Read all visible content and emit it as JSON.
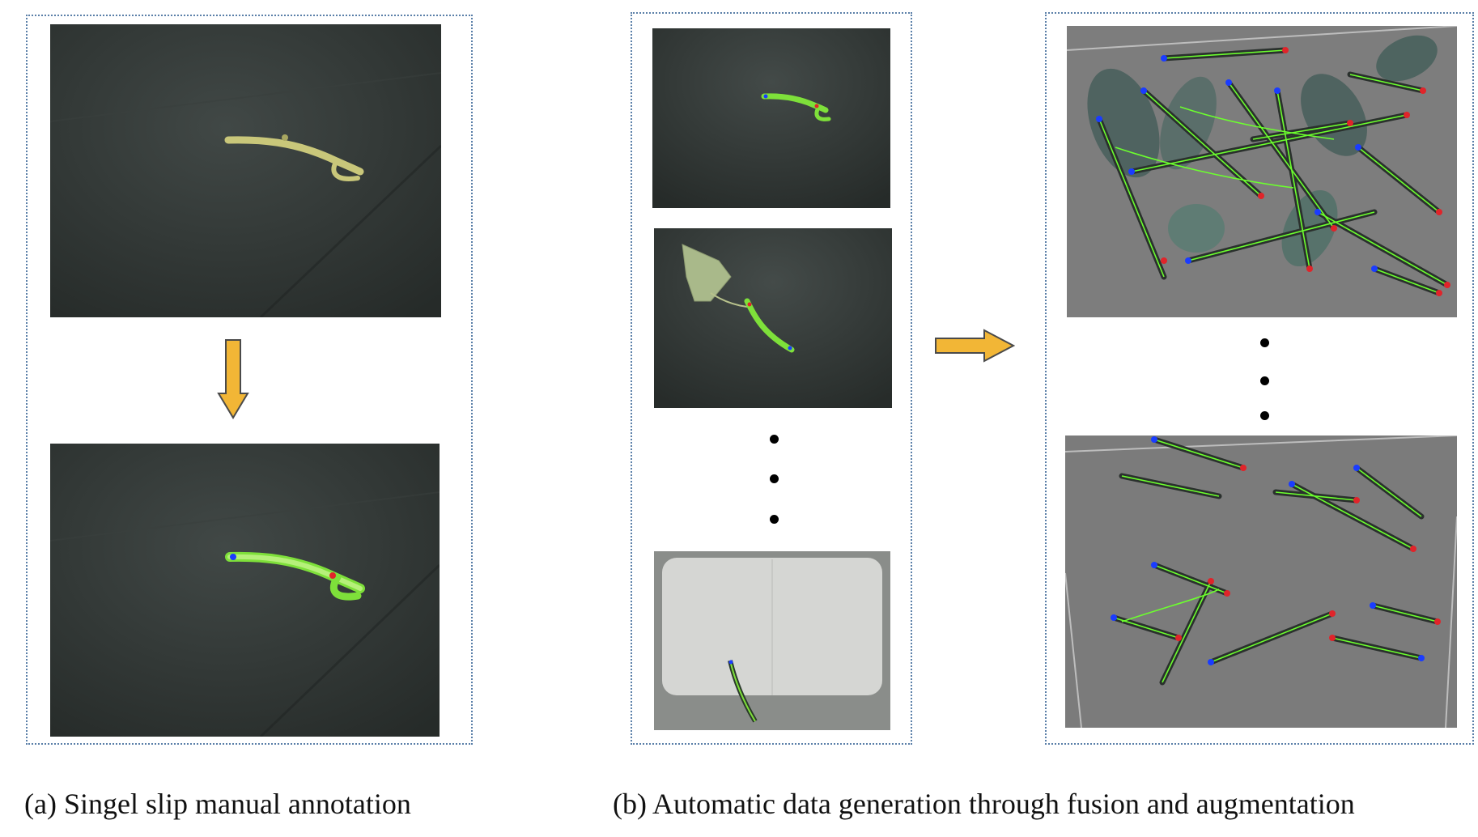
{
  "captions": {
    "a": "(a) Singel slip manual annotation",
    "b": "(b) Automatic data generation through fusion and augmentation"
  },
  "colors": {
    "panel_border": "#5a7fa8",
    "arrow_fill": "#f2b636",
    "arrow_stroke": "#4a4a4a",
    "annotation_outline": "#5cff2a",
    "keypoint_start": "#1a3cff",
    "keypoint_end": "#e0242a",
    "dark_table": "#2e3331",
    "gray_background": "#7d7d7d"
  },
  "icons": [
    "down-arrow-icon",
    "right-arrow-icon",
    "ellipsis-dots-icon"
  ]
}
